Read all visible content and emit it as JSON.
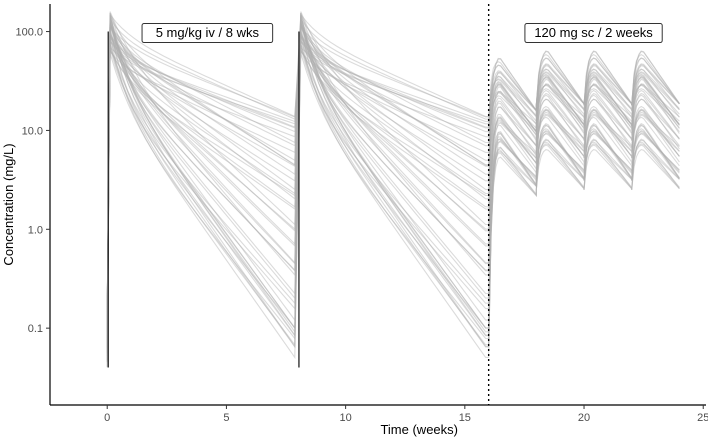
{
  "chart_data": {
    "type": "line",
    "title": "",
    "xlabel": "Time (weeks)",
    "ylabel": "Concentration (mg/L)",
    "x_scale": "linear",
    "y_scale": "log10",
    "xlim": [
      -2.4,
      25.2
    ],
    "ylim": [
      0.0167,
      190
    ],
    "x_ticks": [
      0,
      5,
      10,
      15,
      20,
      25
    ],
    "x_tick_labels": [
      "0",
      "5",
      "10",
      "15",
      "20",
      "25"
    ],
    "y_ticks": [
      0.1,
      1,
      10,
      100
    ],
    "y_tick_labels": [
      "0.1",
      "1.0",
      "10.0",
      "100.0"
    ],
    "grid": false,
    "legend": "none",
    "line_color": "#b0b0b0",
    "line_opacity": 0.45,
    "regimen_change_week": 16,
    "annotations": [
      {
        "label": "5 mg/kg iv / 8 wks",
        "x": 4.2,
        "y": 100
      },
      {
        "label": "120 mg sc / 2 weeks",
        "x": 20.4,
        "y": 100
      }
    ],
    "iv_phase": {
      "dose_times": [
        0,
        8
      ],
      "interval_weeks": 8,
      "peak_range": [
        60,
        160
      ],
      "trough_at_week_8_range": [
        0.04,
        13
      ]
    },
    "sc_phase": {
      "dose_times": [
        16,
        18,
        20,
        22
      ],
      "interval_weeks": 2,
      "end_week": 24,
      "peak_range": [
        10,
        62
      ],
      "trough_range": [
        2.5,
        18
      ]
    },
    "n_subjects": 50
  }
}
